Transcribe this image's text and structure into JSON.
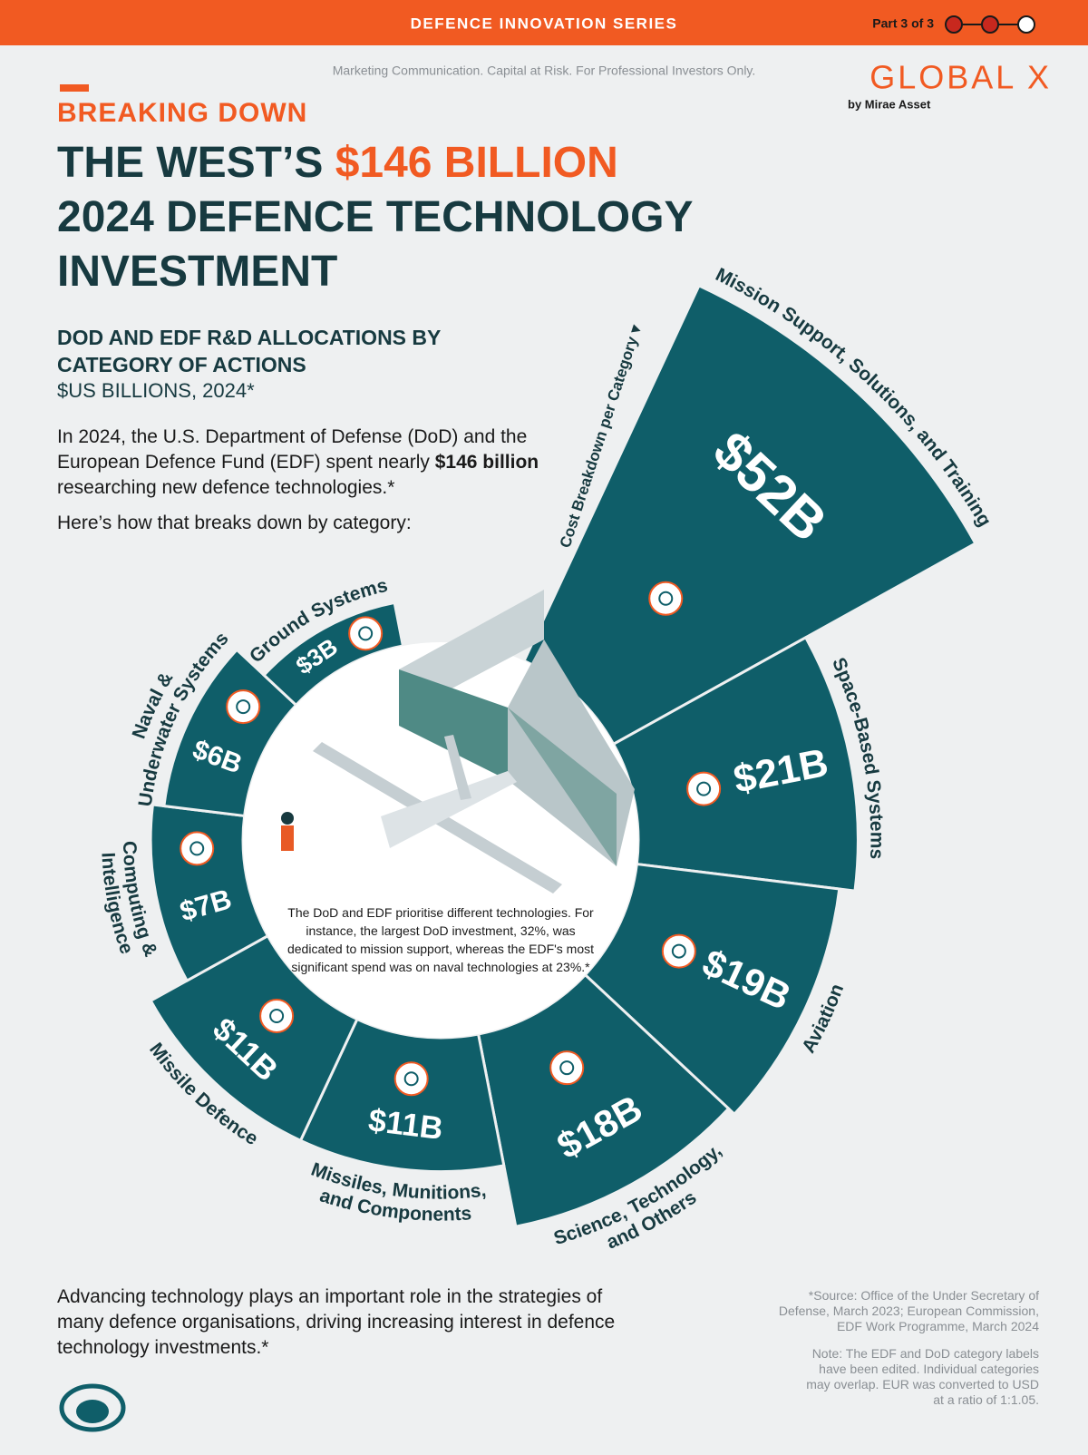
{
  "page": {
    "series_banner": "DEFENCE INNOVATION SERIES",
    "part": "Part 3 of 3",
    "disclaimer": "Marketing Communication. Capital at Risk. For Professional Investors Only.",
    "logo": "GLOBAL X",
    "logo_sub": "by Mirae Asset",
    "kicker": "BREAKING DOWN",
    "intro": [
      "In 2024, the U.S. Department of Defense (DoD) and the European Defence Fund (EDF) spent nearly",
      "$146 billion",
      "researching new defence technologies.*"
    ],
    "intro_2": "Here’s how that breaks down by category:",
    "closing": "Advancing technology plays an important role in the strategies of many defence organisations, driving increasing interest in defence technology investments.*",
    "source": "*Source: Office of the Under Secretary of Defense, March 2023; European Commission, EDF Work Programme, March 2024",
    "note": "Note: The EDF and DoD category labels have been edited. Individual categories may overlap. EUR was converted to USD at a ratio of 1:1.05."
  },
  "chart_data": {
    "type": "radial-bar",
    "title": [
      "THE WEST’S",
      "$146 BILLION",
      "2024 DEFENCE TECHNOLOGY INVESTMENT"
    ],
    "subtitle": "DOD AND EDF R&D ALLOCATIONS BY CATEGORY OF ACTIONS",
    "unit_label": "$US BILLIONS, 2024*",
    "axis_label": "Cost Breakdown per Category ▾",
    "annotation": "The DoD and EDF prioritise different technologies. For instance, the largest DoD investment, 32%, was dedicated to mission support, whereas the EDF's most significant spend was on naval technologies at 23%.*",
    "color": "#0f5e69",
    "categories": [
      "Mission Support, Solutions, and Training",
      "Space-Based Systems",
      "Aviation",
      "Science, Technology, and Others",
      "Missiles, Munitions, and Components",
      "Missile Defence",
      "Computing & Intelligence",
      "Naval & Underwater Systems",
      "Ground Systems"
    ],
    "values": [
      52,
      21,
      19,
      18,
      11,
      11,
      7,
      6,
      3
    ],
    "value_labels": [
      "$52B",
      "$21B",
      "$19B",
      "$18B",
      "$11B",
      "$11B",
      "$7B",
      "$6B",
      "$3B"
    ]
  }
}
